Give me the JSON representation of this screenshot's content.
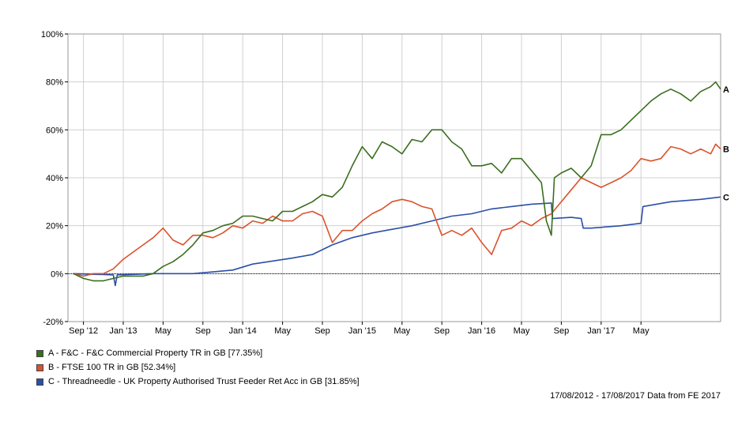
{
  "chart_data": {
    "type": "line",
    "ylim": [
      -20,
      100
    ],
    "y_ticks": [
      "-20%",
      "0%",
      "20%",
      "40%",
      "60%",
      "80%",
      "100%"
    ],
    "y_tick_values": [
      -20,
      0,
      20,
      40,
      60,
      80,
      100
    ],
    "x_ticks": [
      "Sep '12",
      "Jan '13",
      "May",
      "Sep",
      "Jan '14",
      "May",
      "Sep",
      "Jan '15",
      "May",
      "Sep",
      "Jan '16",
      "May",
      "Sep",
      "Jan '17",
      "May"
    ],
    "x_tick_months": [
      1,
      5,
      9,
      13,
      17,
      21,
      25,
      29,
      33,
      37,
      41,
      45,
      49,
      53,
      57
    ],
    "x_range_months": [
      0,
      60
    ],
    "grid": true,
    "zero_line": "dotted",
    "legend_position": "bottom-left",
    "series": [
      {
        "name": "A - F&C - F&C Commercial Property TR in GB [77.35%]",
        "end_label": "A",
        "color": "#3a6e1e",
        "points": [
          [
            0,
            0
          ],
          [
            1,
            -2
          ],
          [
            2,
            -3
          ],
          [
            3,
            -3
          ],
          [
            4,
            -2
          ],
          [
            5,
            -1
          ],
          [
            6,
            -1
          ],
          [
            7,
            -1
          ],
          [
            8,
            0
          ],
          [
            9,
            3
          ],
          [
            10,
            5
          ],
          [
            11,
            8
          ],
          [
            12,
            12
          ],
          [
            13,
            17
          ],
          [
            14,
            18
          ],
          [
            15,
            20
          ],
          [
            16,
            21
          ],
          [
            17,
            24
          ],
          [
            18,
            24
          ],
          [
            19,
            23
          ],
          [
            20,
            22
          ],
          [
            21,
            26
          ],
          [
            22,
            26
          ],
          [
            23,
            28
          ],
          [
            24,
            30
          ],
          [
            25,
            33
          ],
          [
            26,
            32
          ],
          [
            27,
            36
          ],
          [
            28,
            45
          ],
          [
            29,
            53
          ],
          [
            30,
            48
          ],
          [
            31,
            55
          ],
          [
            32,
            53
          ],
          [
            33,
            50
          ],
          [
            34,
            56
          ],
          [
            35,
            55
          ],
          [
            36,
            60
          ],
          [
            37,
            60
          ],
          [
            38,
            55
          ],
          [
            39,
            52
          ],
          [
            40,
            45
          ],
          [
            41,
            45
          ],
          [
            42,
            46
          ],
          [
            43,
            42
          ],
          [
            44,
            48
          ],
          [
            45,
            48
          ],
          [
            46,
            43
          ],
          [
            47,
            38
          ],
          [
            47.5,
            22
          ],
          [
            48,
            16
          ],
          [
            48.3,
            40
          ],
          [
            49,
            42
          ],
          [
            50,
            44
          ],
          [
            51,
            40
          ],
          [
            52,
            45
          ],
          [
            53,
            58
          ],
          [
            54,
            58
          ],
          [
            55,
            60
          ],
          [
            56,
            64
          ],
          [
            57,
            68
          ],
          [
            58,
            72
          ],
          [
            59,
            75
          ],
          [
            60,
            77
          ],
          [
            61,
            75
          ],
          [
            62,
            72
          ],
          [
            63,
            76
          ],
          [
            64,
            78
          ],
          [
            64.5,
            80
          ],
          [
            65,
            77
          ]
        ]
      },
      {
        "name": "B - FTSE 100 TR in GB [52.34%]",
        "end_label": "B",
        "color": "#d9532c",
        "points": [
          [
            0,
            0
          ],
          [
            1,
            -1
          ],
          [
            2,
            0
          ],
          [
            3,
            0
          ],
          [
            4,
            2
          ],
          [
            5,
            6
          ],
          [
            6,
            9
          ],
          [
            7,
            12
          ],
          [
            8,
            15
          ],
          [
            9,
            19
          ],
          [
            10,
            14
          ],
          [
            11,
            12
          ],
          [
            12,
            16
          ],
          [
            13,
            16
          ],
          [
            14,
            15
          ],
          [
            15,
            17
          ],
          [
            16,
            20
          ],
          [
            17,
            19
          ],
          [
            18,
            22
          ],
          [
            19,
            21
          ],
          [
            20,
            24
          ],
          [
            21,
            22
          ],
          [
            22,
            22
          ],
          [
            23,
            25
          ],
          [
            24,
            26
          ],
          [
            25,
            24
          ],
          [
            26,
            13
          ],
          [
            27,
            18
          ],
          [
            28,
            18
          ],
          [
            29,
            22
          ],
          [
            30,
            25
          ],
          [
            31,
            27
          ],
          [
            32,
            30
          ],
          [
            33,
            31
          ],
          [
            34,
            30
          ],
          [
            35,
            28
          ],
          [
            36,
            27
          ],
          [
            37,
            16
          ],
          [
            38,
            18
          ],
          [
            39,
            16
          ],
          [
            40,
            19
          ],
          [
            41,
            13
          ],
          [
            42,
            8
          ],
          [
            43,
            18
          ],
          [
            44,
            19
          ],
          [
            45,
            22
          ],
          [
            46,
            20
          ],
          [
            47,
            23
          ],
          [
            48,
            25
          ],
          [
            49,
            30
          ],
          [
            50,
            35
          ],
          [
            51,
            40
          ],
          [
            52,
            38
          ],
          [
            53,
            36
          ],
          [
            54,
            38
          ],
          [
            55,
            40
          ],
          [
            56,
            43
          ],
          [
            57,
            48
          ],
          [
            58,
            47
          ],
          [
            59,
            48
          ],
          [
            60,
            53
          ],
          [
            61,
            52
          ],
          [
            62,
            50
          ],
          [
            63,
            52
          ],
          [
            64,
            50
          ],
          [
            64.5,
            54
          ],
          [
            65,
            52
          ]
        ]
      },
      {
        "name": "C - Threadneedle - UK Property Authorised Trust Feeder Ret Acc in GB [31.85%]",
        "end_label": "C",
        "color": "#2b4fa8",
        "points": [
          [
            0,
            0
          ],
          [
            4,
            -0.5
          ],
          [
            4.2,
            -5
          ],
          [
            4.4,
            -0.5
          ],
          [
            8,
            0
          ],
          [
            12,
            0
          ],
          [
            16,
            1.5
          ],
          [
            18,
            4
          ],
          [
            22,
            6.5
          ],
          [
            24,
            8
          ],
          [
            26,
            12
          ],
          [
            28,
            15
          ],
          [
            30,
            17
          ],
          [
            32,
            18.5
          ],
          [
            34,
            20
          ],
          [
            36,
            22
          ],
          [
            38,
            24
          ],
          [
            40,
            25
          ],
          [
            42,
            27
          ],
          [
            44,
            28
          ],
          [
            46,
            29
          ],
          [
            48,
            29.5
          ],
          [
            48.1,
            23
          ],
          [
            50,
            23.5
          ],
          [
            51,
            23
          ],
          [
            51.2,
            19
          ],
          [
            52,
            19
          ],
          [
            55,
            20
          ],
          [
            57,
            21
          ],
          [
            57.2,
            28
          ],
          [
            60,
            30
          ],
          [
            63,
            31
          ],
          [
            65,
            32
          ]
        ]
      }
    ]
  },
  "footer": {
    "text": "17/08/2012 - 17/08/2017 Data from FE 2017"
  }
}
